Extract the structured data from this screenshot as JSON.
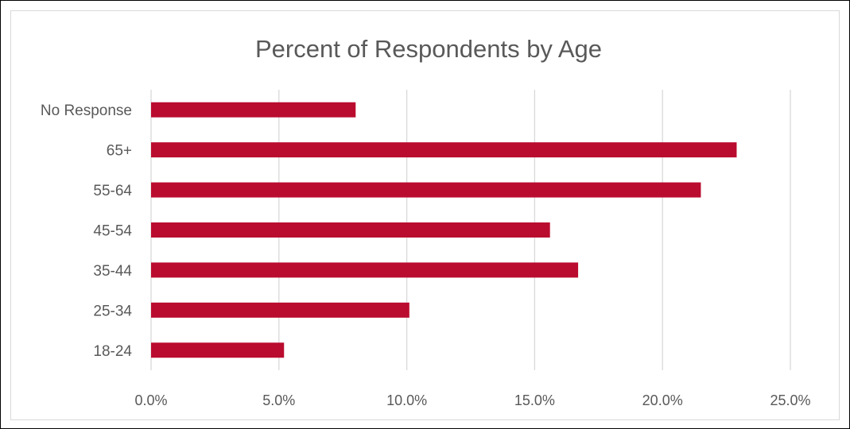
{
  "chart_data": {
    "type": "bar",
    "orientation": "horizontal",
    "title": "Percent of Respondents by Age",
    "categories": [
      "No Response",
      "65+",
      "55-64",
      "45-54",
      "35-44",
      "25-34",
      "18-24"
    ],
    "values": [
      8.0,
      22.9,
      21.5,
      15.6,
      16.7,
      10.1,
      5.2
    ],
    "value_unit": "%",
    "xlim": [
      0,
      25
    ],
    "x_ticks": [
      "0.0%",
      "5.0%",
      "10.0%",
      "15.0%",
      "20.0%",
      "25.0%"
    ],
    "xlabel": "",
    "ylabel": "",
    "grid": "vertical",
    "legend": "none",
    "bar_color": "#ba0c2f"
  }
}
